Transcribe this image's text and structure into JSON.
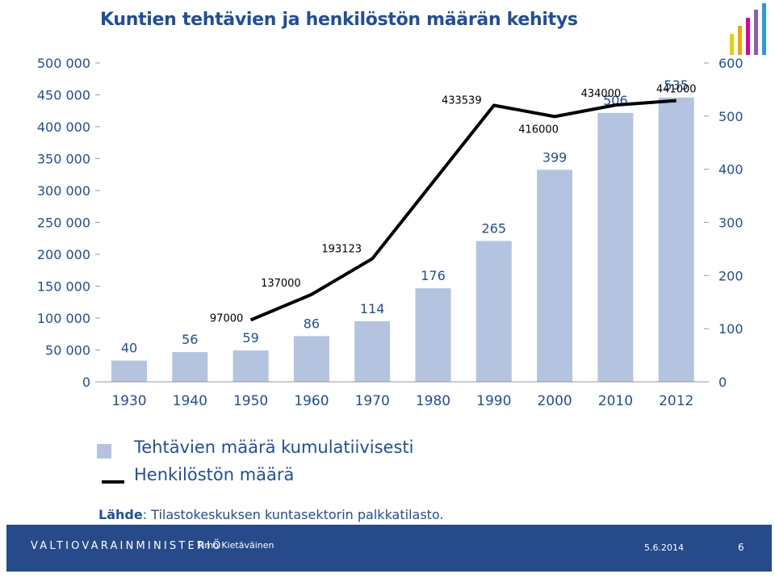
{
  "header": {
    "title": "Kuntien tehtävien ja henkilöstön määrän kehitys"
  },
  "logo": {
    "bar_colors": [
      "#e4d20a",
      "#f0a800",
      "#e0009a",
      "#8b5fa9",
      "#2a9bd6"
    ]
  },
  "chart_data": {
    "type": "bar",
    "categories": [
      "1930",
      "1940",
      "1950",
      "1960",
      "1970",
      "1980",
      "1990",
      "2000",
      "2010",
      "2012"
    ],
    "series": [
      {
        "name": "Tehtävien määrä kumulatiivisesti",
        "type": "bar",
        "axis": "right",
        "values": [
          40,
          56,
          59,
          86,
          114,
          176,
          265,
          399,
          506,
          535
        ],
        "labels": [
          "40",
          "56",
          "59",
          "86",
          "114",
          "176",
          "265",
          "399",
          "506",
          "535"
        ]
      },
      {
        "name": "Henkilöstön määrä",
        "type": "line",
        "axis": "left",
        "x": [
          "1950",
          "1960",
          "1970",
          "1990",
          "2000",
          "2010",
          "2012"
        ],
        "values": [
          97000,
          137000,
          193123,
          433539,
          416000,
          434000,
          441000
        ],
        "labels": [
          "97000",
          "137000",
          "193123",
          "433539",
          "416000",
          "434000",
          "441000"
        ]
      }
    ],
    "y_left": {
      "ylim": [
        0,
        500000
      ],
      "ticks": [
        "0",
        "50 000",
        "100 000",
        "150 000",
        "200 000",
        "250 000",
        "300 000",
        "350 000",
        "400 000",
        "450 000",
        "500 000"
      ]
    },
    "y_right": {
      "ylim": [
        0,
        600
      ],
      "ticks": [
        "0",
        "100",
        "200",
        "300",
        "400",
        "500",
        "600"
      ]
    },
    "colors": {
      "bar": "#b4c4e0",
      "line": "#000000",
      "axis_text": "#1f4e9c"
    },
    "legend": "bottom-left",
    "grid": false
  },
  "legend": {
    "items": [
      {
        "label": "Tehtävien määrä kumulatiivisesti"
      },
      {
        "label": "Henkilöstön määrä"
      }
    ]
  },
  "source": {
    "prefix": "Lähde",
    "text": ": Tilastokeskuksen kuntasektorin palkkatilasto."
  },
  "footer": {
    "ministry": "VALTIOVARAINMINISTERIÖ",
    "author": "Timo Kietäväinen",
    "date": "5.6.2014",
    "page": "6"
  }
}
